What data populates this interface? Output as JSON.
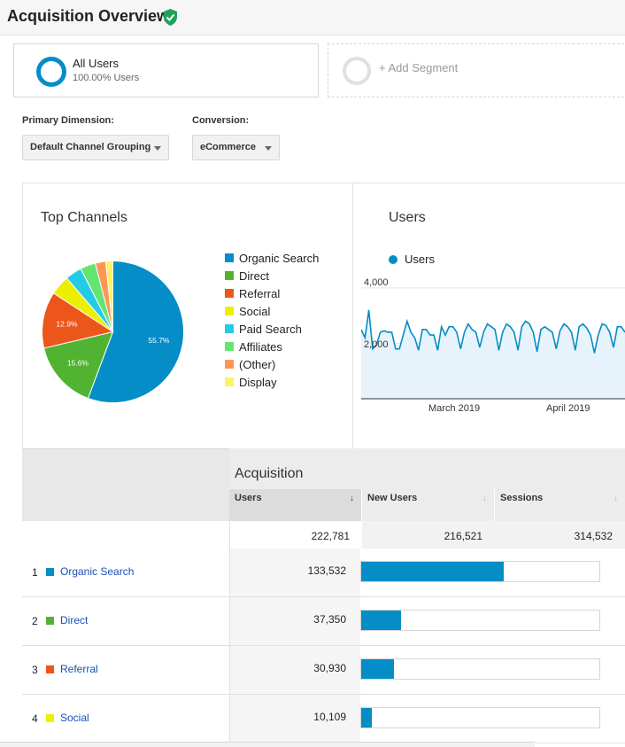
{
  "page": {
    "title": "Acquisition Overview"
  },
  "segments": {
    "all_users": {
      "name": "All Users",
      "sub": "100.00% Users"
    },
    "add_segment": "+ Add Segment"
  },
  "controls": {
    "primary_dimension_label": "Primary Dimension:",
    "primary_dimension_value": "Default Channel Grouping",
    "conversion_label": "Conversion:",
    "conversion_value": "eCommerce"
  },
  "top_channels": {
    "title": "Top Channels",
    "legend": [
      {
        "label": "Organic Search",
        "color": "#058dc7"
      },
      {
        "label": "Direct",
        "color": "#50b432"
      },
      {
        "label": "Referral",
        "color": "#ed561b"
      },
      {
        "label": "Social",
        "color": "#edef00"
      },
      {
        "label": "Paid Search",
        "color": "#24cbe5"
      },
      {
        "label": "Affiliates",
        "color": "#64e572"
      },
      {
        "label": "(Other)",
        "color": "#ff9655"
      },
      {
        "label": "Display",
        "color": "#fff263"
      }
    ]
  },
  "users_chart": {
    "title": "Users",
    "legend": "Users",
    "y_ticks": [
      "4,000",
      "2,000"
    ],
    "x_ticks": [
      "March 2019",
      "April 2019"
    ]
  },
  "chart_data": [
    {
      "type": "pie",
      "title": "Top Channels",
      "categories": [
        "Organic Search",
        "Direct",
        "Referral",
        "Social",
        "Paid Search",
        "Affiliates",
        "(Other)",
        "Display"
      ],
      "values": [
        55.7,
        15.6,
        12.9,
        4.5,
        3.8,
        3.5,
        2.4,
        1.6
      ],
      "labels_shown": [
        "55.7%",
        "15.6%",
        "12.9%"
      ],
      "colors": [
        "#058dc7",
        "#50b432",
        "#ed561b",
        "#edef00",
        "#24cbe5",
        "#64e572",
        "#ff9655",
        "#fff263"
      ]
    },
    {
      "type": "area",
      "title": "Users",
      "series": [
        {
          "name": "Users",
          "values": [
            2500,
            2200,
            3200,
            1800,
            1950,
            2400,
            2450,
            2400,
            2400,
            1800,
            1800,
            2300,
            2800,
            2400,
            2200,
            1750,
            2500,
            2500,
            2300,
            2300,
            1750,
            2600,
            2300,
            2600,
            2600,
            2400,
            1800,
            2400,
            2700,
            2500,
            2400,
            1850,
            2400,
            2700,
            2600,
            2500,
            1750,
            2400,
            2700,
            2600,
            2400,
            1750,
            2600,
            2800,
            2700,
            2400,
            1700,
            2500,
            2600,
            2500,
            2400,
            1800,
            2450,
            2700,
            2600,
            2400,
            1750,
            2600,
            2700,
            2550,
            2300,
            1650,
            2300,
            2700,
            2650,
            2400,
            1850,
            2600,
            2600,
            2400
          ]
        }
      ],
      "ylim": [
        0,
        4000
      ],
      "x_ticks": [
        "March 2019",
        "April 2019"
      ],
      "grid": true
    }
  ],
  "table": {
    "group_header": "Acquisition",
    "columns": [
      "Users",
      "New Users",
      "Sessions"
    ],
    "totals": [
      "222,781",
      "216,521",
      "314,532"
    ],
    "rows": [
      {
        "num": "1",
        "channel": "Organic Search",
        "color": "#058dc7",
        "users": "133,532",
        "share": 0.6
      },
      {
        "num": "2",
        "channel": "Direct",
        "color": "#50b432",
        "users": "37,350",
        "share": 0.168
      },
      {
        "num": "3",
        "channel": "Referral",
        "color": "#ed561b",
        "users": "30,930",
        "share": 0.139
      },
      {
        "num": "4",
        "channel": "Social",
        "color": "#edef00",
        "users": "10,109",
        "share": 0.045
      }
    ]
  },
  "colors": {
    "accent": "#058dc7",
    "verified": "#1fa35a",
    "link": "#1a4fb3"
  }
}
